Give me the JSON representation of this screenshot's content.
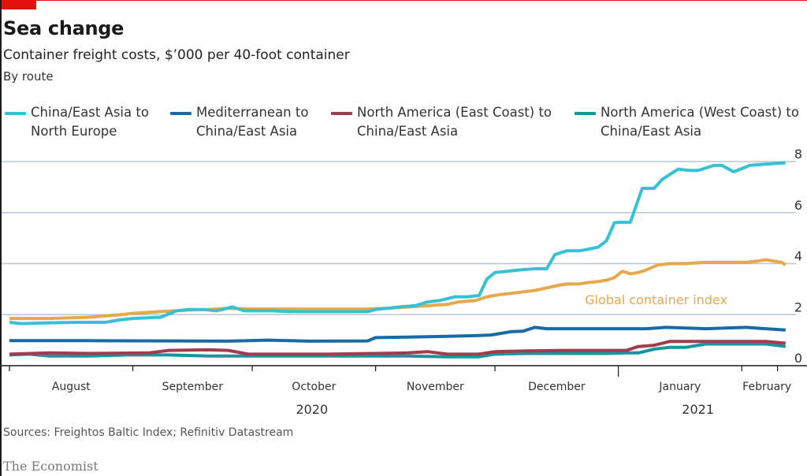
{
  "header": {
    "title": "Sea change",
    "subtitle": "Container freight costs, $’000 per 40-foot container",
    "subsubtitle": "By route"
  },
  "footer": {
    "source": "Sources: Freightos Baltic Index; Refinitiv Datastream",
    "brand": "The Economist"
  },
  "colors": {
    "accent_red": "#e3120b",
    "china_north_europe": "#35c1d6",
    "med_china": "#1a6aa5",
    "na_east_china": "#a23b4e",
    "na_west_china": "#12979b",
    "global_index": "#e5a84a",
    "grid": "#b9c7d3"
  },
  "chart_data": {
    "type": "line",
    "title": "Sea change",
    "subtitle": "Container freight costs, $’000 per 40-foot container",
    "xlabel": "",
    "ylabel": "$’000 per 40-foot container",
    "ylim": [
      0,
      8
    ],
    "yticks": [
      0,
      2,
      4,
      6,
      8
    ],
    "y_axis_side": "right",
    "grid": true,
    "legend_position": "top",
    "x_unit": "days since 2020-08-01",
    "xlim": [
      0,
      196
    ],
    "month_ticks": [
      {
        "label": "August",
        "start": 0,
        "end": 31
      },
      {
        "label": "September",
        "start": 31,
        "end": 61
      },
      {
        "label": "October",
        "start": 61,
        "end": 92
      },
      {
        "label": "November",
        "start": 92,
        "end": 122
      },
      {
        "label": "December",
        "start": 122,
        "end": 153
      },
      {
        "label": "January",
        "start": 153,
        "end": 184
      },
      {
        "label": "February",
        "start": 184,
        "end": 193
      }
    ],
    "year_labels": [
      {
        "label": "2020",
        "at": 76
      },
      {
        "label": "2021",
        "at": 173
      }
    ],
    "year_boundary": 153,
    "annotations": [
      {
        "text": "Global container index",
        "series": "Global container index",
        "x": 145,
        "y": 2.6
      }
    ],
    "series": [
      {
        "name": "China/East Asia to North Europe",
        "legend": [
          "China/East Asia to",
          "North Europe"
        ],
        "color_key": "china_north_europe",
        "x": [
          0,
          3,
          10,
          17,
          24,
          28,
          31,
          38,
          42,
          45,
          49,
          52,
          56,
          59,
          63,
          66,
          70,
          80,
          90,
          92,
          98,
          102,
          105,
          108,
          112,
          115,
          118,
          120,
          122,
          125,
          128,
          132,
          135,
          137,
          140,
          143,
          145,
          148,
          150,
          152,
          153,
          156,
          159,
          162,
          164,
          168,
          171,
          173,
          177,
          179,
          182,
          186,
          190,
          195
        ],
        "y": [
          1.7,
          1.65,
          1.68,
          1.7,
          1.7,
          1.8,
          1.85,
          1.9,
          2.15,
          2.2,
          2.2,
          2.15,
          2.3,
          2.15,
          2.15,
          2.15,
          2.12,
          2.12,
          2.12,
          2.2,
          2.3,
          2.35,
          2.5,
          2.55,
          2.7,
          2.7,
          2.75,
          3.4,
          3.65,
          3.7,
          3.75,
          3.8,
          3.8,
          4.35,
          4.5,
          4.5,
          4.55,
          4.65,
          4.9,
          5.6,
          5.62,
          5.62,
          6.95,
          6.95,
          7.3,
          7.7,
          7.65,
          7.65,
          7.85,
          7.85,
          7.6,
          7.85,
          7.9,
          7.95
        ]
      },
      {
        "name": "Mediterranean to China/East Asia",
        "legend": [
          "Mediterranean to",
          "China/East Asia"
        ],
        "color_key": "med_china",
        "x": [
          0,
          20,
          40,
          55,
          65,
          75,
          90,
          92,
          100,
          110,
          118,
          121,
          126,
          129,
          132,
          135,
          140,
          150,
          160,
          165,
          175,
          185,
          190,
          195
        ],
        "y": [
          0.98,
          0.98,
          0.97,
          0.96,
          1.0,
          0.96,
          0.97,
          1.1,
          1.12,
          1.15,
          1.18,
          1.2,
          1.33,
          1.35,
          1.5,
          1.45,
          1.45,
          1.45,
          1.45,
          1.5,
          1.45,
          1.5,
          1.45,
          1.4
        ]
      },
      {
        "name": "North America (East Coast) to China/East Asia",
        "legend": [
          "North America (East Coast) to",
          "China/East Asia"
        ],
        "color_key": "na_east_china",
        "x": [
          0,
          10,
          20,
          35,
          40,
          50,
          55,
          60,
          80,
          92,
          100,
          105,
          110,
          118,
          122,
          130,
          140,
          150,
          155,
          158,
          162,
          166,
          170,
          180,
          190,
          195
        ],
        "y": [
          0.45,
          0.5,
          0.48,
          0.5,
          0.6,
          0.62,
          0.6,
          0.45,
          0.45,
          0.48,
          0.5,
          0.55,
          0.45,
          0.45,
          0.55,
          0.58,
          0.6,
          0.6,
          0.6,
          0.75,
          0.8,
          0.95,
          0.95,
          0.95,
          0.95,
          0.88
        ]
      },
      {
        "name": "North America (West Coast) to China/East Asia",
        "legend": [
          "North America (West Coast) to",
          "China/East Asia"
        ],
        "color_key": "na_west_china",
        "x": [
          0,
          5,
          10,
          20,
          30,
          40,
          50,
          60,
          70,
          80,
          92,
          100,
          110,
          118,
          122,
          130,
          140,
          150,
          155,
          158,
          162,
          166,
          170,
          175,
          180,
          190,
          195
        ],
        "y": [
          0.42,
          0.45,
          0.38,
          0.38,
          0.42,
          0.42,
          0.38,
          0.38,
          0.38,
          0.38,
          0.38,
          0.38,
          0.35,
          0.35,
          0.45,
          0.48,
          0.48,
          0.48,
          0.5,
          0.5,
          0.65,
          0.72,
          0.72,
          0.85,
          0.85,
          0.85,
          0.75
        ]
      },
      {
        "name": "Global container index",
        "legend": null,
        "color_key": "global_index",
        "x": [
          0,
          10,
          20,
          28,
          31,
          38,
          45,
          50,
          55,
          60,
          70,
          80,
          90,
          95,
          100,
          105,
          110,
          113,
          117,
          120,
          123,
          127,
          132,
          135,
          138,
          140,
          143,
          145,
          148,
          150,
          152,
          154,
          156,
          158,
          160,
          163,
          166,
          170,
          175,
          180,
          185,
          188,
          190,
          194,
          195
        ],
        "y": [
          1.85,
          1.85,
          1.9,
          2.0,
          2.05,
          2.12,
          2.18,
          2.2,
          2.25,
          2.22,
          2.22,
          2.22,
          2.22,
          2.25,
          2.3,
          2.35,
          2.4,
          2.5,
          2.55,
          2.7,
          2.78,
          2.85,
          2.95,
          3.05,
          3.15,
          3.2,
          3.2,
          3.25,
          3.3,
          3.35,
          3.45,
          3.7,
          3.6,
          3.65,
          3.75,
          3.95,
          4.0,
          4.0,
          4.05,
          4.05,
          4.05,
          4.1,
          4.15,
          4.05,
          3.95
        ]
      }
    ]
  }
}
